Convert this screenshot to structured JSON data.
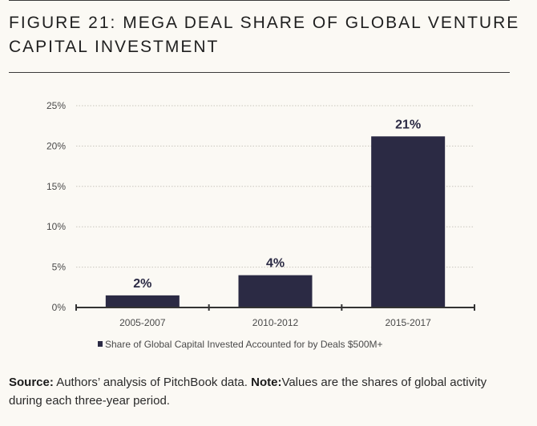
{
  "title": "FIGURE 21: MEGA DEAL SHARE OF GLOBAL VENTURE CAPITAL INVESTMENT",
  "source": {
    "source_label": "Source:",
    "source_text": " Authors’ analysis of PitchBook data.  ",
    "note_label": "Note:",
    "note_text": "Values are the shares of global activity during each three-year period."
  },
  "colors": {
    "bar": "#2b2a44",
    "grid": "#c9c6bd",
    "axis": "#333333"
  },
  "chart_data": {
    "type": "bar",
    "title": "",
    "xlabel": "",
    "ylabel": "",
    "categories": [
      "2005-2007",
      "2010-2012",
      "2015-2017"
    ],
    "series": [
      {
        "name": "Share of Global Capital Invested Accounted for by Deals $500M+",
        "values": [
          1.5,
          4.0,
          21.2
        ],
        "labels": [
          "2%",
          "4%",
          "21%"
        ]
      }
    ],
    "ylim": [
      0,
      25
    ],
    "yticks": [
      0,
      5,
      10,
      15,
      20,
      25
    ],
    "ytick_labels": [
      "0%",
      "5%",
      "10%",
      "15%",
      "20%",
      "25%"
    ],
    "grid": true,
    "legend": "bottom-center"
  }
}
